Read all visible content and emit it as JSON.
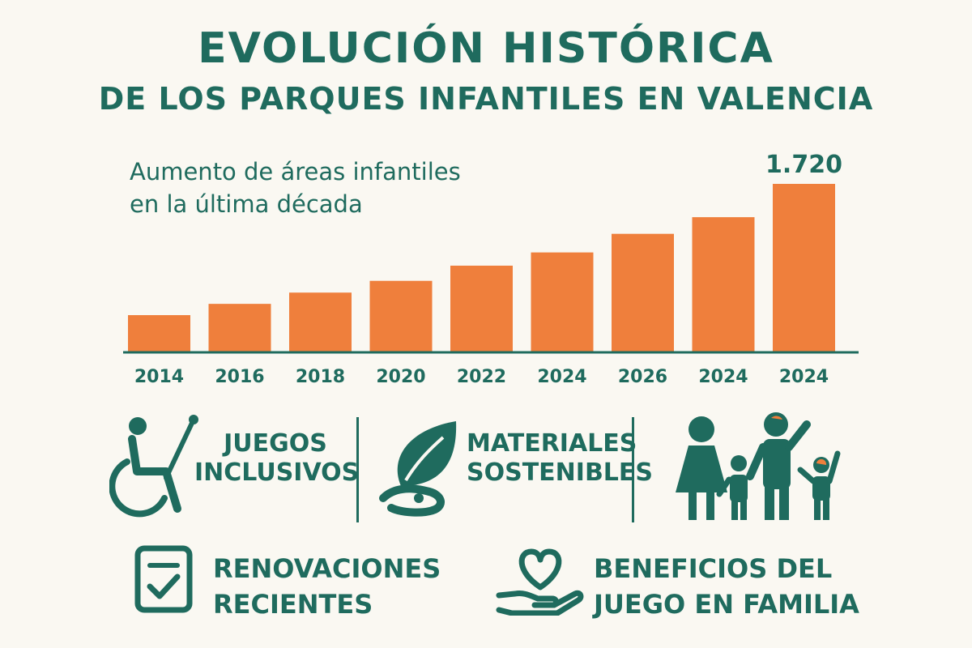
{
  "title": {
    "line1": "EVOLUCIÓN HISTÓRICA",
    "line2": "DE LOS PARQUES INFANTILES EN VALENCIA"
  },
  "colors": {
    "primary": "#1f6b5e",
    "accent": "#ef7f3c",
    "background": "#faf8f2"
  },
  "chart_data": {
    "type": "bar",
    "title": "Aumento de áreas infantiles\nen la última década",
    "categories": [
      "2014",
      "2016",
      "2018",
      "2020",
      "2022",
      "2024",
      "2026",
      "2024",
      "2024"
    ],
    "values": [
      380,
      495,
      610,
      730,
      885,
      1020,
      1210,
      1380,
      1720
    ],
    "data_labels": [
      "",
      "",
      "",
      "",
      "",
      "",
      "",
      "",
      "1.720"
    ],
    "ylim": [
      0,
      1720
    ],
    "grid": false,
    "legend": "none"
  },
  "features": [
    {
      "label": "JUEGOS\nINCLUSIVOS",
      "icon": "wheelchair-icon"
    },
    {
      "label": "MATERIALES\nSOSTENIBLES",
      "icon": "leaf-hand-icon"
    },
    {
      "label": "",
      "icon": "family-icon"
    }
  ],
  "bottom": [
    {
      "label": "RENOVACIONES\nRECIENTES",
      "icon": "checklist-icon"
    },
    {
      "label": "BENEFICIOS DEL\nJUEGO EN FAMILIA",
      "icon": "heart-hand-icon"
    }
  ]
}
